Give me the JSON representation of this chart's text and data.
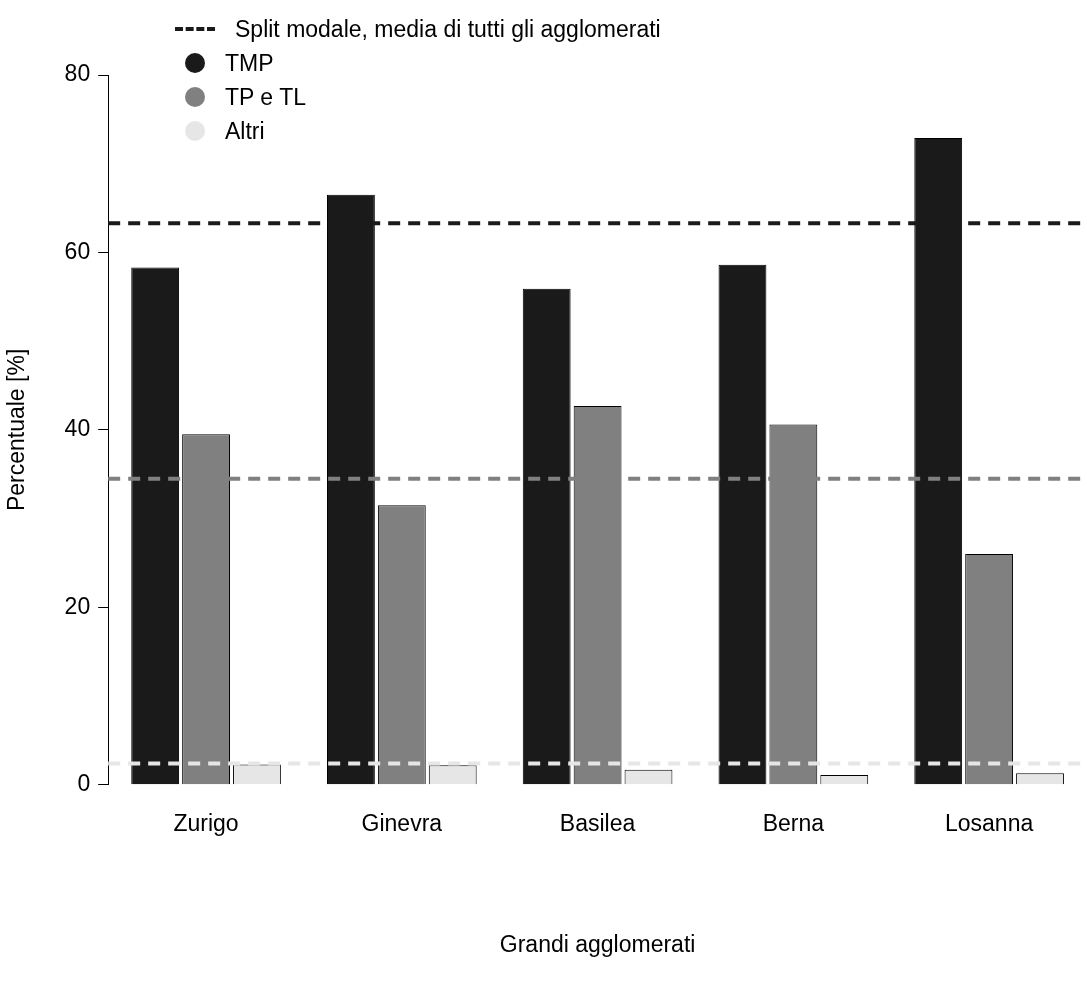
{
  "chart_data": {
    "type": "bar",
    "xlabel": "Grandi agglomerati",
    "ylabel": "Percentuale [%]",
    "categories": [
      "Zurigo",
      "Ginevra",
      "Basilea",
      "Berna",
      "Losanna"
    ],
    "series": [
      {
        "name": "TMP",
        "color": "#1a1a1a",
        "values": [
          58.3,
          66.5,
          55.9,
          58.6,
          72.9
        ]
      },
      {
        "name": "TP e TL",
        "color": "#808080",
        "values": [
          39.5,
          31.5,
          42.7,
          40.6,
          26.0
        ]
      },
      {
        "name": "Altri",
        "color": "#e6e6e6",
        "values": [
          2.3,
          2.2,
          1.7,
          1.1,
          1.3
        ]
      }
    ],
    "ylim": [
      0,
      80
    ],
    "yticks": [
      0,
      20,
      40,
      60,
      80
    ],
    "grid": false,
    "legend": "top left",
    "ref_lines": [
      {
        "axis": "y",
        "value": 63.3,
        "label": "Split modale, media di tutti gli agglomerati",
        "color": "#1a1a1a",
        "line_style": "dashed"
      },
      {
        "axis": "y",
        "value": 34.5,
        "color": "#808080",
        "line_style": "dashed"
      },
      {
        "axis": "y",
        "value": 2.4,
        "color": "#e6e6e6",
        "line_style": "dashed"
      }
    ]
  }
}
